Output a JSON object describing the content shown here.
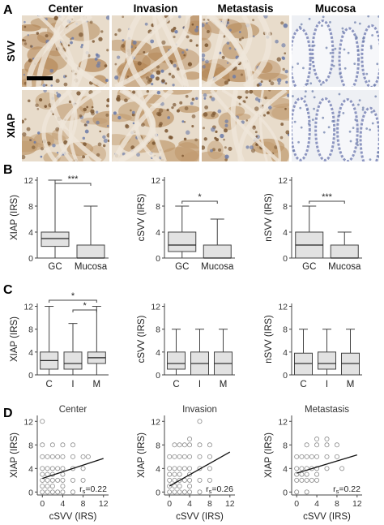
{
  "panel_a": {
    "letter": "A",
    "columns": [
      "Center",
      "Invasion",
      "Metastasis",
      "Mucosa"
    ],
    "rows": [
      "SVV",
      "XIAP"
    ],
    "tissue": [
      [
        "brown-stained tumor",
        "brown-stained tumor",
        "brown-stained tumor",
        "pale mucosa glands"
      ],
      [
        "brown-stained tumor",
        "brown-stained tumor",
        "brown-stained tumor",
        "pale mucosa glands"
      ]
    ],
    "colors": {
      "stain": "#a0764a",
      "nuclei": "#6a7aa8",
      "bg_tumor": "#e8dccb",
      "bg_mucosa": "#eef0f4"
    }
  },
  "panel_b": {
    "letter": "B",
    "chart_data": [
      {
        "type": "box",
        "ylabel": "XIAP (IRS)",
        "yticks": [
          "0",
          "4",
          "8",
          "12"
        ],
        "ylim": [
          0,
          12.5
        ],
        "categories": [
          "GC",
          "Mucosa"
        ],
        "boxes": [
          {
            "min": 0,
            "q1": 1.8,
            "median": 3,
            "q3": 4,
            "max": 12
          },
          {
            "min": 0,
            "q1": 0,
            "median": 0,
            "q3": 2,
            "max": 8
          }
        ],
        "significance": [
          {
            "from": 0,
            "to": 1,
            "label": "***"
          }
        ]
      },
      {
        "type": "box",
        "ylabel": "cSVV (IRS)",
        "yticks": [
          "0",
          "4",
          "8",
          "12"
        ],
        "ylim": [
          0,
          12.5
        ],
        "categories": [
          "GC",
          "Mucosa"
        ],
        "boxes": [
          {
            "min": 0,
            "q1": 1,
            "median": 2,
            "q3": 4,
            "max": 8
          },
          {
            "min": 0,
            "q1": 0,
            "median": 0,
            "q3": 2,
            "max": 6
          }
        ],
        "significance": [
          {
            "from": 0,
            "to": 1,
            "label": "*"
          }
        ]
      },
      {
        "type": "box",
        "ylabel": "nSVV (IRS)",
        "yticks": [
          "0",
          "4",
          "8",
          "12"
        ],
        "ylim": [
          0,
          12.5
        ],
        "categories": [
          "GC",
          "Mucosa"
        ],
        "boxes": [
          {
            "min": 0,
            "q1": 0,
            "median": 2,
            "q3": 4,
            "max": 8
          },
          {
            "min": 0,
            "q1": 0,
            "median": 0,
            "q3": 2,
            "max": 4
          }
        ],
        "significance": [
          {
            "from": 0,
            "to": 1,
            "label": "***"
          }
        ]
      }
    ]
  },
  "panel_c": {
    "letter": "C",
    "chart_data": [
      {
        "type": "box",
        "ylabel": "XIAP (IRS)",
        "yticks": [
          "0",
          "4",
          "8",
          "12"
        ],
        "ylim": [
          0,
          12.5
        ],
        "categories": [
          "C",
          "I",
          "M"
        ],
        "boxes": [
          {
            "min": 0,
            "q1": 1,
            "median": 2.5,
            "q3": 4,
            "max": 12
          },
          {
            "min": 0,
            "q1": 1,
            "median": 2,
            "q3": 4,
            "max": 9
          },
          {
            "min": 0,
            "q1": 2,
            "median": 3,
            "q3": 4,
            "max": 12
          }
        ],
        "significance": [
          {
            "from": 0,
            "to": 2,
            "label": "*"
          },
          {
            "from": 1,
            "to": 2,
            "label": "*"
          }
        ]
      },
      {
        "type": "box",
        "ylabel": "cSVV (IRS)",
        "yticks": [
          "0",
          "4",
          "8",
          "12"
        ],
        "ylim": [
          0,
          12.5
        ],
        "categories": [
          "C",
          "I",
          "M"
        ],
        "boxes": [
          {
            "min": 0,
            "q1": 1,
            "median": 2,
            "q3": 4,
            "max": 8
          },
          {
            "min": 0,
            "q1": 0,
            "median": 2,
            "q3": 4,
            "max": 8
          },
          {
            "min": 0,
            "q1": 0,
            "median": 2,
            "q3": 4,
            "max": 8
          }
        ],
        "significance": []
      },
      {
        "type": "box",
        "ylabel": "nSVV (IRS)",
        "yticks": [
          "0",
          "4",
          "8",
          "12"
        ],
        "ylim": [
          0,
          12.5
        ],
        "categories": [
          "C",
          "I",
          "M"
        ],
        "boxes": [
          {
            "min": 0,
            "q1": 0,
            "median": 2,
            "q3": 3.8,
            "max": 8
          },
          {
            "min": 0,
            "q1": 1,
            "median": 2,
            "q3": 4,
            "max": 8
          },
          {
            "min": 0,
            "q1": 0,
            "median": 2,
            "q3": 3.8,
            "max": 8
          }
        ],
        "significance": []
      }
    ]
  },
  "panel_d": {
    "letter": "D",
    "chart_data": [
      {
        "type": "scatter",
        "title": "Center",
        "xlabel": "cSVV (IRS)",
        "ylabel": "XIAP (IRS)",
        "xticks": [
          "0",
          "4",
          "8",
          "12"
        ],
        "yticks": [
          "0",
          "4",
          "8",
          "12"
        ],
        "xlim": [
          -1,
          13
        ],
        "ylim": [
          -0.5,
          13
        ],
        "r_label": "r",
        "r_sub": "s",
        "r_value": "=0.22",
        "points": [
          [
            0,
            0
          ],
          [
            0,
            1
          ],
          [
            0,
            2
          ],
          [
            0,
            3
          ],
          [
            0,
            4
          ],
          [
            0,
            6
          ],
          [
            0,
            8
          ],
          [
            1,
            0
          ],
          [
            1,
            1
          ],
          [
            1,
            2
          ],
          [
            1,
            3
          ],
          [
            1,
            4
          ],
          [
            1,
            6
          ],
          [
            2,
            0
          ],
          [
            2,
            1
          ],
          [
            2,
            2
          ],
          [
            2,
            3
          ],
          [
            2,
            4
          ],
          [
            2,
            6
          ],
          [
            2,
            8
          ],
          [
            3,
            0
          ],
          [
            3,
            2
          ],
          [
            3,
            4
          ],
          [
            3,
            6
          ],
          [
            4,
            0
          ],
          [
            4,
            1
          ],
          [
            4,
            2
          ],
          [
            4,
            3
          ],
          [
            4,
            4
          ],
          [
            4,
            6
          ],
          [
            4,
            8
          ],
          [
            6,
            0
          ],
          [
            6,
            2
          ],
          [
            6,
            4
          ],
          [
            6,
            6
          ],
          [
            6,
            8
          ],
          [
            8,
            2
          ],
          [
            8,
            4
          ],
          [
            8,
            6
          ],
          [
            9,
            6
          ],
          [
            0,
            12
          ]
        ],
        "fit": [
          [
            0,
            2.3
          ],
          [
            12,
            5.7
          ]
        ]
      },
      {
        "type": "scatter",
        "title": "Invasion",
        "xlabel": "cSVV (IRS)",
        "ylabel": "XIAP (IRS)",
        "xticks": [
          "0",
          "4",
          "8",
          "12"
        ],
        "yticks": [
          "0",
          "4",
          "8",
          "12"
        ],
        "xlim": [
          -1,
          13
        ],
        "ylim": [
          -0.5,
          13
        ],
        "r_label": "r",
        "r_sub": "s",
        "r_value": "=0.26",
        "points": [
          [
            0,
            0
          ],
          [
            0,
            1
          ],
          [
            0,
            2
          ],
          [
            0,
            3
          ],
          [
            0,
            4
          ],
          [
            0,
            6
          ],
          [
            1,
            0
          ],
          [
            1,
            1
          ],
          [
            1,
            2
          ],
          [
            1,
            3
          ],
          [
            1,
            4
          ],
          [
            1,
            6
          ],
          [
            1,
            8
          ],
          [
            2,
            0
          ],
          [
            2,
            1
          ],
          [
            2,
            2
          ],
          [
            2,
            3
          ],
          [
            2,
            4
          ],
          [
            2,
            6
          ],
          [
            2,
            8
          ],
          [
            3,
            0
          ],
          [
            3,
            2
          ],
          [
            3,
            4
          ],
          [
            3,
            6
          ],
          [
            3,
            8
          ],
          [
            4,
            0
          ],
          [
            4,
            1
          ],
          [
            4,
            2
          ],
          [
            4,
            3
          ],
          [
            4,
            4
          ],
          [
            4,
            6
          ],
          [
            4,
            8
          ],
          [
            4,
            9
          ],
          [
            6,
            0
          ],
          [
            6,
            2
          ],
          [
            6,
            4
          ],
          [
            6,
            6
          ],
          [
            6,
            8
          ],
          [
            6,
            12
          ],
          [
            8,
            2
          ],
          [
            8,
            4
          ],
          [
            8,
            6
          ],
          [
            8,
            8
          ]
        ],
        "fit": [
          [
            0,
            1.0
          ],
          [
            12,
            6.8
          ]
        ]
      },
      {
        "type": "scatter",
        "title": "Metastasis",
        "xlabel": "cSVV (IRS)",
        "ylabel": "XIAP (IRS)",
        "xticks": [
          "0",
          "4",
          "8",
          "12"
        ],
        "yticks": [
          "0",
          "4",
          "8",
          "12"
        ],
        "xlim": [
          -1,
          13
        ],
        "ylim": [
          -0.5,
          13
        ],
        "r_label": "r",
        "r_sub": "s",
        "r_value": "=0.22",
        "points": [
          [
            0,
            0
          ],
          [
            0,
            2
          ],
          [
            0,
            3
          ],
          [
            0,
            4
          ],
          [
            0,
            6
          ],
          [
            1,
            2
          ],
          [
            1,
            3
          ],
          [
            1,
            4
          ],
          [
            1,
            6
          ],
          [
            2,
            0
          ],
          [
            2,
            2
          ],
          [
            2,
            3
          ],
          [
            2,
            4
          ],
          [
            2,
            6
          ],
          [
            2,
            8
          ],
          [
            3,
            2
          ],
          [
            3,
            4
          ],
          [
            3,
            6
          ],
          [
            4,
            2
          ],
          [
            4,
            3
          ],
          [
            4,
            4
          ],
          [
            4,
            6
          ],
          [
            4,
            8
          ],
          [
            4,
            9
          ],
          [
            6,
            4
          ],
          [
            6,
            6
          ],
          [
            6,
            8
          ],
          [
            6,
            9
          ],
          [
            8,
            6
          ],
          [
            9,
            4
          ],
          [
            8,
            8
          ]
        ],
        "fit": [
          [
            0,
            3.2
          ],
          [
            12,
            6.3
          ]
        ]
      }
    ]
  }
}
